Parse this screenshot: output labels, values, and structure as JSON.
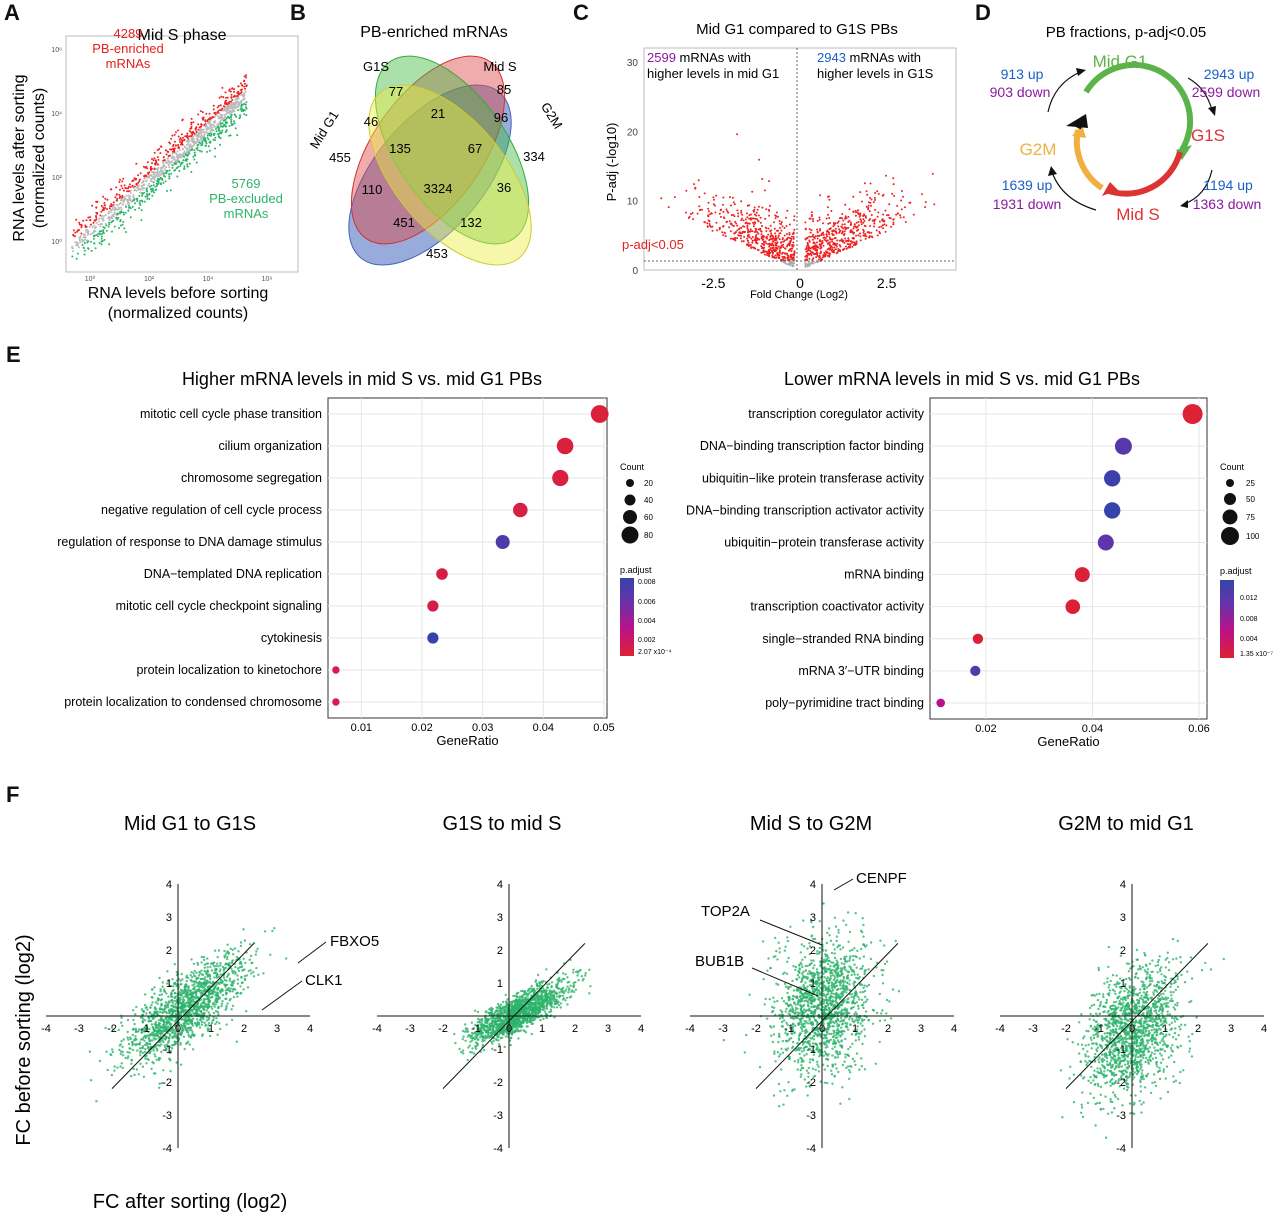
{
  "panels": {
    "A": {
      "letter": "A",
      "title": "Mid S phase",
      "xlabel1": "RNA levels before sorting",
      "xlabel2": "(normalized counts)",
      "ylabel1": "RNA levels after sorting",
      "ylabel2": "(normalized counts)",
      "enriched_count": "4289",
      "enriched_l1": "PB-enriched",
      "enriched_l2": "mRNAs",
      "excluded_count": "5769",
      "excluded_l1": "PB-excluded",
      "excluded_l2": "mRNAs",
      "xticks": [
        "10⁰",
        "10²",
        "10⁴",
        "10⁶"
      ],
      "yticks": [
        "10⁰",
        "10²",
        "10⁴",
        "10⁶"
      ]
    },
    "B": {
      "letter": "B",
      "title": "PB-enriched mRNAs",
      "sets": [
        "Mid G1",
        "G1S",
        "Mid S",
        "G2M"
      ],
      "set_colors": [
        "#4466bb",
        "#dd4444",
        "#44bb44",
        "#eeee44"
      ],
      "regions": {
        "g1_only": "455",
        "g1s_only": "77",
        "s_only": "85",
        "g2m_only": "334",
        "g1_g1s": "46",
        "g1s_s": "21",
        "s_g2m": "96",
        "g1_g2m": "453",
        "g1_s": "110",
        "g1s_g2m": "36",
        "g1_g1s_s": "135",
        "g1s_s_g2m": "67",
        "g1_s_g2m": "451",
        "g1_g1s_g2m": "132",
        "all": "3324"
      }
    },
    "C": {
      "letter": "C",
      "title": "Mid G1 compared to G1S PBs",
      "left_count": "2599",
      "left_l1": " mRNAs with",
      "left_l2": "higher levels in mid G1",
      "right_count": "2943",
      "right_l1": " mRNAs with",
      "right_l2": "higher levels in G1S",
      "padj_label": "p-adj<0.05",
      "ylabel": "P-adj (-log10)",
      "xlabel": "Fold Change (Log2)",
      "yticks": [
        "0",
        "10",
        "20",
        "30"
      ],
      "xticks": [
        "-2.5",
        "0",
        "2.5"
      ]
    },
    "D": {
      "letter": "D",
      "title": "PB fractions, p-adj<0.05",
      "phases": {
        "g1": "Mid G1",
        "g1s": "G1S",
        "s": "Mid S",
        "g2m": "G2M"
      },
      "colors": {
        "g1": "#5cb34a",
        "g1s": "#dd3333",
        "s": "#dd3333",
        "g2m": "#f0b040",
        "up": "#1a5fc8",
        "down": "#8a1aa0"
      },
      "tr": {
        "up": "2943 up",
        "down": "2599 down"
      },
      "br": {
        "up": "1194 up",
        "down": "1363 down"
      },
      "bl": {
        "up": "1639 up",
        "down": "1931 down"
      },
      "tl": {
        "up": "913 up",
        "down": "903 down"
      }
    },
    "E": {
      "letter": "E",
      "left": {
        "title": "Higher mRNA levels in mid S vs. mid G1 PBs",
        "xlabel": "GeneRatio",
        "xticks": [
          "0.01",
          "0.02",
          "0.03",
          "0.04",
          "0.05"
        ],
        "count_title": "Count",
        "count_labels": [
          "20",
          "40",
          "60",
          "80"
        ],
        "padj_title": "p.adjust",
        "padj_labels": [
          "0.008",
          "0.006",
          "0.004",
          "0.002",
          "2.07 x10⁻⁴"
        ]
      },
      "right": {
        "title": "Lower mRNA levels in mid S vs. mid G1 PBs",
        "xlabel": "GeneRatio",
        "xticks": [
          "0.02",
          "0.04",
          "0.06"
        ],
        "count_title": "Count",
        "count_labels": [
          "25",
          "50",
          "75",
          "100"
        ],
        "padj_title": "p.adjust",
        "padj_labels": [
          "0.012",
          "0.008",
          "0.004",
          "1.35 x10⁻⁷"
        ]
      }
    },
    "F": {
      "letter": "F",
      "ylabel": "FC before sorting (log2)",
      "xlabel": "FC after sorting (log2)",
      "titles": [
        "Mid G1 to G1S",
        "G1S to mid S",
        "Mid S to G2M",
        "G2M to mid G1"
      ],
      "axis_ticks": [
        "-4",
        "-3",
        "-2",
        "-1",
        "0",
        "1",
        "2",
        "3",
        "4"
      ],
      "genes": {
        "fbxo5": "FBXO5",
        "clk1": "CLK1",
        "cenpf": "CENPF",
        "top2a": "TOP2A",
        "bub1b": "BUB1B"
      }
    }
  },
  "chart_data": [
    {
      "type": "scatter",
      "title": "Mid S phase",
      "xlabel": "RNA levels before sorting (normalized counts)",
      "ylabel": "RNA levels after sorting (normalized counts)",
      "xscale": "log",
      "series": [
        {
          "name": "PB-enriched mRNAs",
          "color": "#ee2222",
          "n": 4289
        },
        {
          "name": "PB-excluded mRNAs",
          "color": "#2db36b",
          "n": 5769
        }
      ]
    },
    {
      "type": "scatter",
      "title": "Mid G1 compared to G1S PBs",
      "xlabel": "Fold Change (Log2)",
      "ylabel": "P-adj (-log10)",
      "xlim": [
        -4.5,
        4.5
      ],
      "ylim": [
        0,
        32
      ],
      "threshold_y": 1.3,
      "series": [
        {
          "name": "higher levels in mid G1",
          "n": 2599
        },
        {
          "name": "higher levels in G1S",
          "n": 2943
        }
      ]
    },
    {
      "type": "scatter",
      "title": "Higher mRNA levels in mid S vs. mid G1 PBs",
      "xlabel": "GeneRatio",
      "xlim": [
        0.0045,
        0.0505
      ],
      "categories": [
        "mitotic cell cycle phase transition",
        "cilium organization",
        "chromosome segregation",
        "negative regulation of cell cycle process",
        "regulation of response to DNA damage stimulus",
        "DNA−templated DNA replication",
        "mitotic cell cycle checkpoint signaling",
        "cytokinesis",
        "protein localization to kinetochore",
        "protein localization to condensed chromosome"
      ],
      "gene_ratio": [
        0.0493,
        0.0436,
        0.0428,
        0.0362,
        0.0333,
        0.0233,
        0.0218,
        0.0218,
        0.0058,
        0.0058
      ],
      "count": [
        85,
        75,
        73,
        62,
        57,
        40,
        37,
        37,
        10,
        10
      ],
      "p_adjust": [
        0.0003,
        0.0004,
        0.0004,
        0.0006,
        0.0075,
        0.0007,
        0.0008,
        0.0087,
        0.0009,
        0.0009
      ]
    },
    {
      "type": "scatter",
      "title": "Lower mRNA levels in mid S vs. mid G1 PBs",
      "xlabel": "GeneRatio",
      "xlim": [
        0.0095,
        0.0615
      ],
      "categories": [
        "transcription coregulator activity",
        "DNA−binding transcription factor binding",
        "ubiquitin−like protein transferase activity",
        "DNA−binding transcription activator activity",
        "ubiquitin−protein transferase activity",
        "mRNA binding",
        "transcription coactivator activity",
        "single−stranded RNA binding",
        "mRNA 3′−UTR binding",
        "poly−pyrimidine tract binding"
      ],
      "gene_ratio": [
        0.0588,
        0.0458,
        0.0437,
        0.0437,
        0.0425,
        0.0381,
        0.0363,
        0.0185,
        0.018,
        0.0115
      ],
      "count": [
        100,
        78,
        74,
        74,
        72,
        65,
        62,
        31,
        30,
        19
      ],
      "p_adjust": [
        0.0001,
        0.0114,
        0.0137,
        0.0143,
        0.0107,
        0.0004,
        0.0003,
        0.0004,
        0.0117,
        0.0055
      ]
    },
    {
      "type": "scatter",
      "title": "Mid G1 to G1S",
      "xlabel": "FC after sorting (log2)",
      "ylabel": "FC before sorting (log2)",
      "xlim": [
        -4,
        4
      ],
      "ylim": [
        -4,
        4
      ],
      "color": "#2db36b"
    },
    {
      "type": "scatter",
      "title": "G1S to mid S",
      "xlabel": "FC after sorting (log2)",
      "ylabel": "FC before sorting (log2)",
      "xlim": [
        -4,
        4
      ],
      "ylim": [
        -4,
        4
      ],
      "color": "#2db36b"
    },
    {
      "type": "scatter",
      "title": "Mid S to G2M",
      "xlabel": "FC after sorting (log2)",
      "ylabel": "FC before sorting (log2)",
      "xlim": [
        -4,
        4
      ],
      "ylim": [
        -4,
        4
      ],
      "color": "#2db36b"
    },
    {
      "type": "scatter",
      "title": "G2M to mid G1",
      "xlabel": "FC after sorting (log2)",
      "ylabel": "FC before sorting (log2)",
      "xlim": [
        -4,
        4
      ],
      "ylim": [
        -4,
        4
      ],
      "color": "#2db36b"
    }
  ]
}
